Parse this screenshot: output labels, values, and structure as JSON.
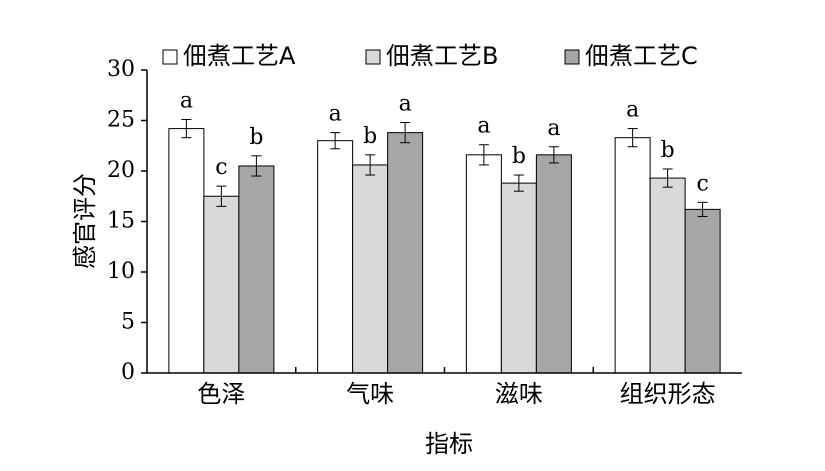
{
  "chart_data": {
    "type": "bar",
    "categories": [
      "色泽",
      "气味",
      "滋味",
      "组织形态"
    ],
    "series": [
      {
        "name": "佃煮工艺A",
        "color": "#ffffff",
        "values": [
          24.2,
          23.0,
          21.6,
          23.3
        ],
        "errors": [
          0.9,
          0.8,
          1.0,
          0.9
        ],
        "letters": [
          "a",
          "a",
          "a",
          "a"
        ]
      },
      {
        "name": "佃煮工艺B",
        "color": "#d9d9d9",
        "values": [
          17.5,
          20.6,
          18.8,
          19.3
        ],
        "errors": [
          1.0,
          1.0,
          0.8,
          0.9
        ],
        "letters": [
          "c",
          "b",
          "b",
          "b"
        ]
      },
      {
        "name": "佃煮工艺C",
        "color": "#a6a6a6",
        "values": [
          20.5,
          23.8,
          21.6,
          16.2
        ],
        "errors": [
          1.0,
          1.0,
          0.8,
          0.7
        ],
        "letters": [
          "b",
          "a",
          "a",
          "c"
        ]
      }
    ],
    "xlabel": "指标",
    "ylabel": "感官评分",
    "ylim": [
      0,
      30
    ],
    "yticks": [
      "0",
      "5",
      "10",
      "15",
      "20",
      "25",
      "30"
    ],
    "grid": false,
    "legend_position": "top"
  }
}
